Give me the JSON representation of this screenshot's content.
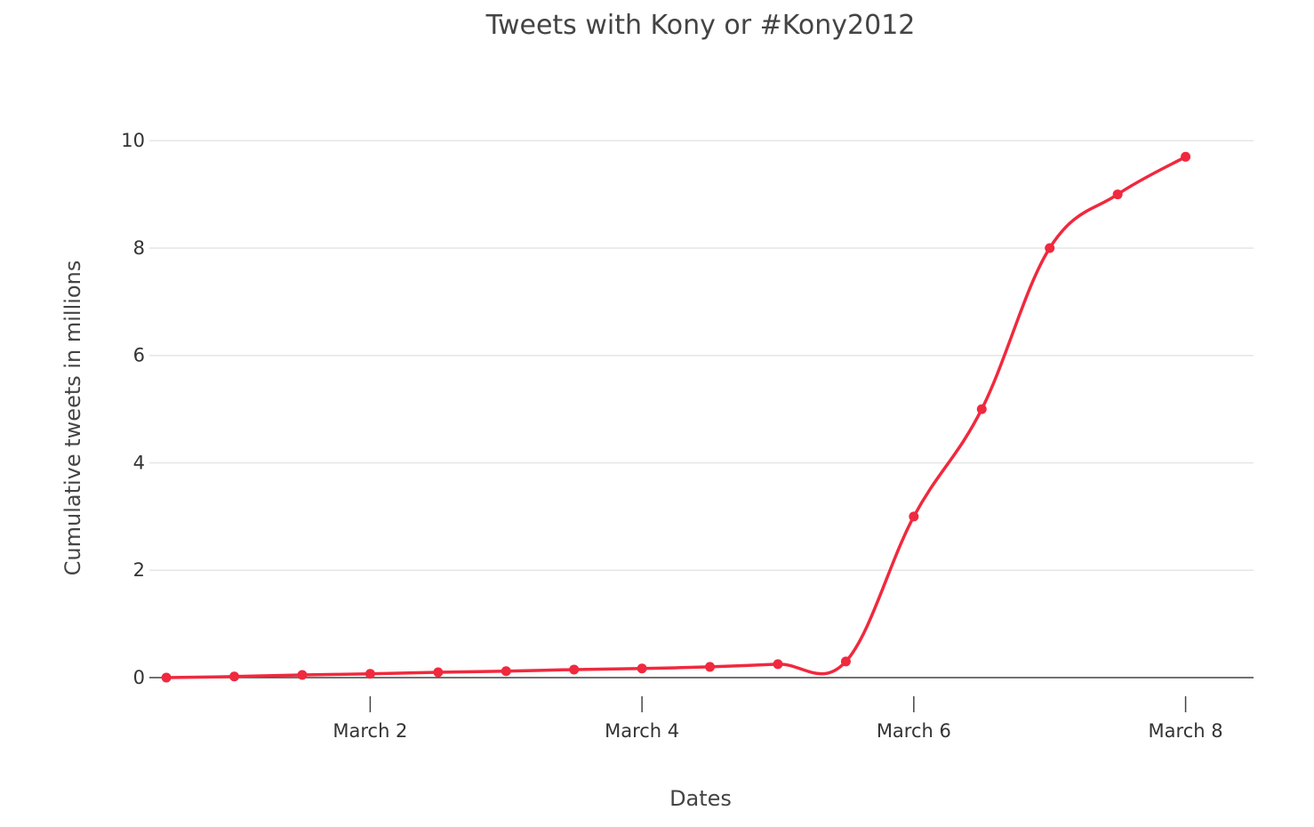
{
  "chart_data": {
    "type": "line",
    "title": "Tweets with Kony or #Kony2012",
    "xlabel": "Dates",
    "ylabel": "Cumulative tweets in millions",
    "x_ticks": [
      {
        "value": "2012-03-02",
        "label": "March 2"
      },
      {
        "value": "2012-03-04",
        "label": "March 4"
      },
      {
        "value": "2012-03-06",
        "label": "March 6"
      },
      {
        "value": "2012-03-08",
        "label": "March 8"
      }
    ],
    "y_ticks": [
      0,
      2,
      4,
      6,
      8,
      10
    ],
    "xlim": [
      "2012-02-29T09:00",
      "2012-03-08T12:00"
    ],
    "ylim": [
      0,
      10.5
    ],
    "grid": true,
    "legend": "none",
    "series": [
      {
        "color": "#f0293e",
        "points": [
          {
            "x": "2012-02-29T12:00",
            "y": 0.0
          },
          {
            "x": "2012-03-01T00:00",
            "y": 0.02
          },
          {
            "x": "2012-03-01T12:00",
            "y": 0.05
          },
          {
            "x": "2012-03-02T00:00",
            "y": 0.07
          },
          {
            "x": "2012-03-02T12:00",
            "y": 0.1
          },
          {
            "x": "2012-03-03T00:00",
            "y": 0.12
          },
          {
            "x": "2012-03-03T12:00",
            "y": 0.15
          },
          {
            "x": "2012-03-04T00:00",
            "y": 0.17
          },
          {
            "x": "2012-03-04T12:00",
            "y": 0.2
          },
          {
            "x": "2012-03-05T00:00",
            "y": 0.25
          },
          {
            "x": "2012-03-05T12:00",
            "y": 0.3
          },
          {
            "x": "2012-03-06T00:00",
            "y": 3.0
          },
          {
            "x": "2012-03-06T12:00",
            "y": 5.0
          },
          {
            "x": "2012-03-07T00:00",
            "y": 8.0
          },
          {
            "x": "2012-03-07T12:00",
            "y": 9.0
          },
          {
            "x": "2012-03-08T00:00",
            "y": 9.7
          }
        ]
      }
    ]
  }
}
